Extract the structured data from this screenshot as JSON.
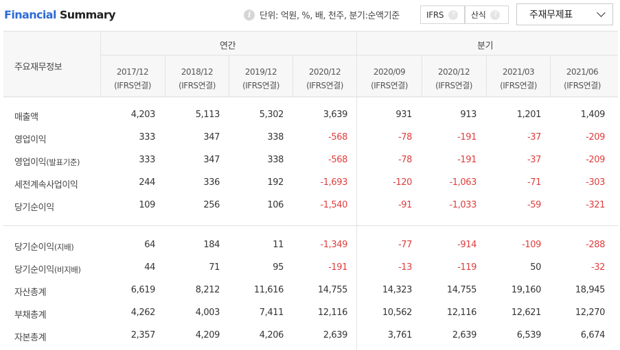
{
  "header": {
    "title_part1": "Financial",
    "title_part2": "Summary",
    "unit_text": "단위: 억원, %, 배, 천주, 분기:순액기준",
    "ifrs_label": "IFRS",
    "formula_label": "산식",
    "help_glyph": "?",
    "info_glyph": "i",
    "statement_select": "주재무제표"
  },
  "table": {
    "row_header": "주요재무정보",
    "group_annual": "연간",
    "group_quarterly": "분기",
    "columns": [
      {
        "period": "2017/12",
        "basis": "(IFRS연결)"
      },
      {
        "period": "2018/12",
        "basis": "(IFRS연결)"
      },
      {
        "period": "2019/12",
        "basis": "(IFRS연결)"
      },
      {
        "period": "2020/12",
        "basis": "(IFRS연결)"
      },
      {
        "period": "2020/09",
        "basis": "(IFRS연결)"
      },
      {
        "period": "2020/12",
        "basis": "(IFRS연결)"
      },
      {
        "period": "2021/03",
        "basis": "(IFRS연결)"
      },
      {
        "period": "2021/06",
        "basis": "(IFRS연결)"
      }
    ],
    "rows": [
      {
        "label": "매출액",
        "sub": "",
        "values": [
          "4,203",
          "5,113",
          "5,302",
          "3,639",
          "931",
          "913",
          "1,201",
          "1,409"
        ]
      },
      {
        "label": "영업이익",
        "sub": "",
        "values": [
          "333",
          "347",
          "338",
          "-568",
          "-78",
          "-191",
          "-37",
          "-209"
        ]
      },
      {
        "label": "영업이익",
        "sub": "(발표기준)",
        "values": [
          "333",
          "347",
          "338",
          "-568",
          "-78",
          "-191",
          "-37",
          "-209"
        ]
      },
      {
        "label": "세전계속사업이익",
        "sub": "",
        "values": [
          "244",
          "336",
          "192",
          "-1,693",
          "-120",
          "-1,063",
          "-71",
          "-303"
        ]
      },
      {
        "label": "당기순이익",
        "sub": "",
        "values": [
          "109",
          "256",
          "106",
          "-1,540",
          "-91",
          "-1,033",
          "-59",
          "-321"
        ]
      },
      {
        "label": "당기순이익",
        "sub": "(지배)",
        "values": [
          "64",
          "184",
          "11",
          "-1,349",
          "-77",
          "-914",
          "-109",
          "-288"
        ]
      },
      {
        "label": "당기순이익",
        "sub": "(비지배)",
        "values": [
          "44",
          "71",
          "95",
          "-191",
          "-13",
          "-119",
          "50",
          "-32"
        ]
      },
      {
        "label": "자산총계",
        "sub": "",
        "values": [
          "6,619",
          "8,212",
          "11,616",
          "14,755",
          "14,323",
          "14,755",
          "19,160",
          "18,945"
        ]
      },
      {
        "label": "부채총계",
        "sub": "",
        "values": [
          "4,262",
          "4,003",
          "7,411",
          "12,116",
          "10,562",
          "12,116",
          "12,621",
          "12,270"
        ]
      },
      {
        "label": "자본총계",
        "sub": "",
        "values": [
          "2,357",
          "4,209",
          "4,206",
          "2,639",
          "3,761",
          "2,639",
          "6,539",
          "6,674"
        ]
      }
    ]
  },
  "colors": {
    "negative": "#e03c3c",
    "title_accent": "#2f6bd6"
  }
}
